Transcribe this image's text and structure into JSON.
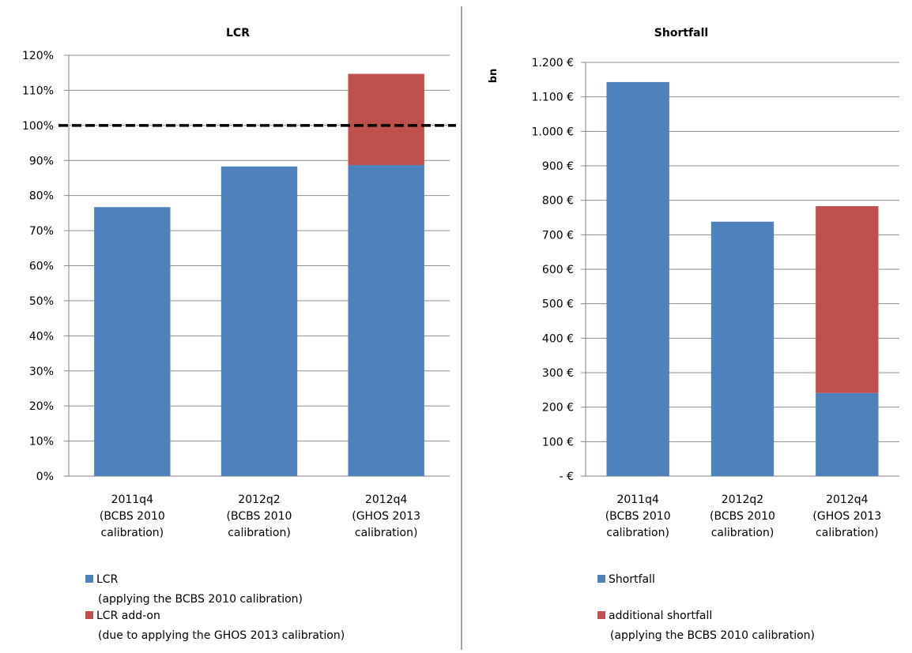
{
  "chart_data": [
    {
      "type": "bar",
      "stacked": true,
      "title": "LCR",
      "xlabel": "",
      "ylabel": "",
      "ylim": [
        0,
        1.2
      ],
      "yticks": [
        "0%",
        "10%",
        "20%",
        "30%",
        "40%",
        "50%",
        "60%",
        "70%",
        "80%",
        "90%",
        "100%",
        "110%",
        "120%"
      ],
      "grid": true,
      "reference_line": {
        "value": 1.0,
        "style": "dashed",
        "color": "#000000"
      },
      "categories": [
        [
          "2011q4",
          "(BCBS 2010",
          "calibration)"
        ],
        [
          "2012q2",
          "(BCBS 2010",
          "calibration)"
        ],
        [
          "2012q4",
          "(GHOS 2013",
          "calibration)"
        ]
      ],
      "series": [
        {
          "name": "LCR",
          "color": "#4F81BD",
          "values": [
            0.767,
            0.883,
            0.887
          ]
        },
        {
          "name": "LCR add-on",
          "color": "#C0504D",
          "values": [
            0,
            0,
            0.26
          ]
        }
      ],
      "legend": {
        "placement": "bottom",
        "entries": [
          {
            "color": "#4F81BD",
            "label": "LCR",
            "note": "(applying the BCBS 2010 calibration)"
          },
          {
            "color": "#C0504D",
            "label": "LCR add-on",
            "note": "(due to applying the GHOS 2013 calibration)"
          }
        ]
      }
    },
    {
      "type": "bar",
      "stacked": true,
      "title": "Shortfall",
      "xlabel": "",
      "ylabel": "bn",
      "ylim": [
        0,
        1200
      ],
      "yticks": [
        "-  €",
        "100 €",
        "200 €",
        "300 €",
        "400 €",
        "500 €",
        "600 €",
        "700 €",
        "800 €",
        "900 €",
        "1.000 €",
        "1.100 €",
        "1.200 €"
      ],
      "grid": true,
      "categories": [
        [
          "2011q4",
          "(BCBS 2010",
          "calibration)"
        ],
        [
          "2012q2",
          "(BCBS 2010",
          "calibration)"
        ],
        [
          "2012q4",
          "(GHOS 2013",
          "calibration)"
        ]
      ],
      "series": [
        {
          "name": "Shortfall",
          "color": "#4F81BD",
          "values": [
            1143,
            738,
            241
          ]
        },
        {
          "name": "additional shortfall",
          "color": "#C0504D",
          "values": [
            0,
            0,
            542
          ]
        }
      ],
      "legend": {
        "placement": "bottom",
        "entries": [
          {
            "color": "#4F81BD",
            "label": "Shortfall",
            "note": ""
          },
          {
            "color": "#C0504D",
            "label": "additional shortfall",
            "note": "(applying the BCBS 2010 calibration)"
          }
        ]
      }
    }
  ]
}
